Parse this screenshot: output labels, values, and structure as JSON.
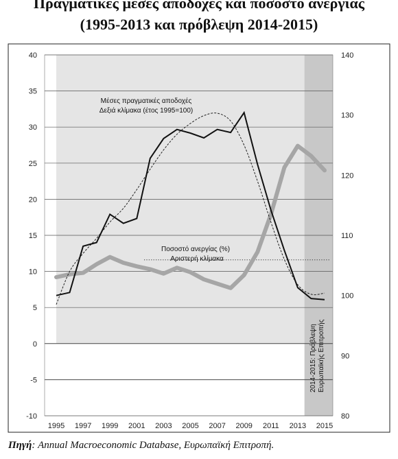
{
  "title_line1": "Πραγματικές μέσες αποδοχές και ποσοστό ανεργίας",
  "title_line2": "(1995-2013 και πρόβλεψη 2014-2015)",
  "source_label": "Πηγή",
  "source_text": ": Annual Macroeconomic Database, Ευρωπαϊκή Επιτροπή.",
  "chart_data": {
    "type": "line",
    "x": [
      1995,
      1996,
      1997,
      1998,
      1999,
      2000,
      2001,
      2002,
      2003,
      2004,
      2005,
      2006,
      2007,
      2008,
      2009,
      2010,
      2011,
      2012,
      2013,
      2014,
      2015
    ],
    "x_tick_labels": [
      "1995",
      "1997",
      "1999",
      "2001",
      "2003",
      "2005",
      "2007",
      "2009",
      "2011",
      "2013",
      "2015"
    ],
    "left_axis": {
      "ylim": [
        -10,
        40
      ],
      "ticks": [
        "-10",
        "-5",
        "0",
        "5",
        "10",
        "15",
        "20",
        "25",
        "30",
        "35",
        "40"
      ]
    },
    "right_axis": {
      "ylim": [
        80,
        140
      ],
      "ticks": [
        "80",
        "90",
        "100",
        "110",
        "120",
        "130",
        "140"
      ]
    },
    "series": [
      {
        "name": "Μέσες πραγματικές αποδοχές",
        "label_line1": "Μέσες πραγματικές αποδοχές",
        "label_line2": "Δεξιά κλίμακα (έτος 1995=100)",
        "axis": "right",
        "color": "#111111",
        "values": [
          100.0,
          100.5,
          108.2,
          108.8,
          113.5,
          112.0,
          112.8,
          122.8,
          126.1,
          127.6,
          127.0,
          126.2,
          127.6,
          127.1,
          130.4,
          121.8,
          114.2,
          107.5,
          101.3,
          99.5,
          99.3
        ]
      },
      {
        "name": "Ποσοστό ανεργίας (%)",
        "label_line1": "Ποσοστό ανεργίας (%)",
        "label_line2": "Αριστερή κλίμακα",
        "axis": "left",
        "color": "#a6a6a6",
        "values": [
          9.2,
          9.6,
          9.8,
          11.0,
          12.0,
          11.2,
          10.7,
          10.3,
          9.7,
          10.5,
          9.9,
          8.9,
          8.3,
          7.7,
          9.5,
          12.7,
          17.9,
          24.4,
          27.4,
          26.0,
          24.0
        ]
      }
    ],
    "trend_series_values": [
      98.5,
      104.0,
      107.0,
      109.5,
      112.2,
      114.5,
      117.6,
      121.0,
      124.2,
      126.8,
      128.6,
      129.9,
      130.3,
      129.0,
      125.0,
      119.0,
      112.2,
      106.0,
      101.8,
      100.2,
      100.4
    ],
    "trend_axis": "right",
    "reference_line_left": 11.6,
    "forecast_region": {
      "from": 2013.5,
      "to": 2015.6,
      "label_line1": "2014-2015: Πρόβλεψη",
      "label_line2": "Ευρωπαϊκής Επιτροπής"
    },
    "colors": {
      "plot_bg": "#e5e5e5",
      "forecast_bg": "#c8c8c8",
      "grid": "#555555",
      "frame": "#222222"
    }
  }
}
